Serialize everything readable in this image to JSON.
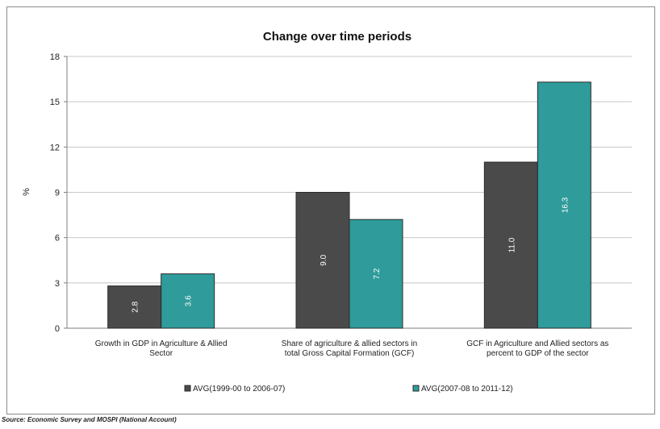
{
  "chart_data": {
    "type": "bar",
    "title": "Change over time periods",
    "ylabel": "%",
    "xlabel": "",
    "ylim": [
      0,
      18
    ],
    "yticks": [
      0,
      3,
      6,
      9,
      12,
      15,
      18
    ],
    "grid": true,
    "legend_position": "bottom",
    "categories": [
      [
        "Growth in GDP in Agriculture & Allied",
        "Sector"
      ],
      [
        "Share of agriculture & allied sectors in",
        "total Gross Capital Formation (GCF)"
      ],
      [
        "GCF in Agriculture and Allied sectors as",
        "percent to GDP of the sector"
      ]
    ],
    "series": [
      {
        "name": "AVG(1999-00 to 2006-07)",
        "values": [
          2.8,
          9.0,
          11.0
        ],
        "labels": [
          "2.8",
          "9.0",
          "11.0"
        ],
        "color": "#4a4a4a"
      },
      {
        "name": "AVG(2007-08 to 2011-12)",
        "values": [
          3.6,
          7.2,
          16.3
        ],
        "labels": [
          "3.6",
          "7.2",
          "16.3"
        ],
        "color": "#2f9b9b"
      }
    ]
  },
  "source": "Source: Economic Survey and MOSPI (National Account)"
}
